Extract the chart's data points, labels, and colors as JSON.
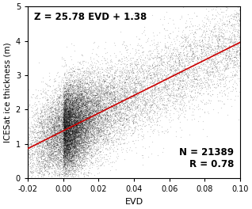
{
  "title": "",
  "xlabel": "EVD",
  "ylabel": "ICESat ice thickness (m)",
  "xlim": [
    -0.02,
    0.1
  ],
  "ylim": [
    0,
    5
  ],
  "xticks": [
    -0.02,
    0.0,
    0.02,
    0.04,
    0.06,
    0.08,
    0.1
  ],
  "yticks": [
    0,
    1,
    2,
    3,
    4,
    5
  ],
  "regression_slope": 25.78,
  "regression_intercept": 1.38,
  "regression_color": "#cc0000",
  "n_points": 21389,
  "r_value": 0.78,
  "equation_text": "Z = 25.78 EVD + 1.38",
  "stats_text": "N = 21389\nR = 0.78",
  "scatter_color": "black",
  "scatter_alpha": 0.18,
  "scatter_size": 0.8,
  "background_color": "#ffffff",
  "seed": 42,
  "xlabel_fontsize": 8,
  "ylabel_fontsize": 7.5,
  "tick_fontsize": 7,
  "annotation_fontsize": 8.5
}
